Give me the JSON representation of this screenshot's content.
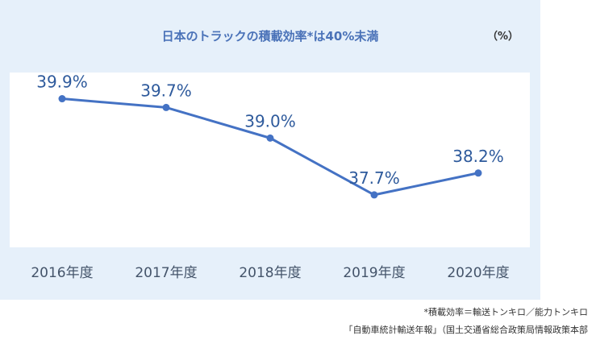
{
  "chart_data": {
    "type": "line",
    "title": "日本のトラックの積載効率*は40%未満",
    "unit_label": "（%）",
    "categories": [
      "2016年度",
      "2017年度",
      "2018年度",
      "2019年度",
      "2020年度"
    ],
    "values": [
      39.9,
      39.7,
      39.0,
      37.7,
      38.2
    ],
    "value_labels": [
      "39.9%",
      "39.7%",
      "39.0%",
      "37.7%",
      "38.2%"
    ],
    "ylim": [
      36.5,
      40.5
    ],
    "xlabel": "",
    "ylabel": "",
    "grid": false,
    "line_color": "#4472c4",
    "label_color": "#2e5a9c",
    "tick_color": "#44546a"
  },
  "footnotes": {
    "definition": "*積載効率＝輸送トンキロ／能力トンキロ",
    "source": "「自動車統計輸送年報」（国土交通省総合政策局情報政策本部"
  }
}
